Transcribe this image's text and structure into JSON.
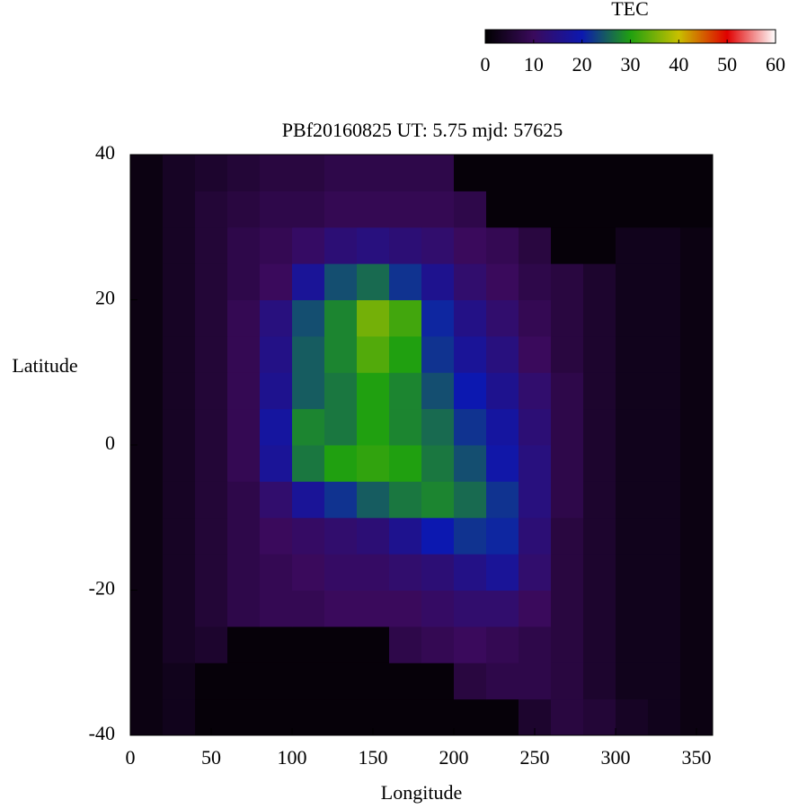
{
  "chart_data": {
    "type": "heatmap",
    "title": "PBf20160825  UT: 5.75  mjd: 57625",
    "x_label": "Longitude",
    "y_label": "Latitude",
    "colorbar_label": "TEC",
    "xlim": [
      0,
      360
    ],
    "ylim": [
      -40,
      40
    ],
    "xticks": [
      0,
      50,
      100,
      150,
      200,
      250,
      300,
      350
    ],
    "yticks": [
      -40,
      -20,
      0,
      20,
      40
    ],
    "clim": [
      0,
      60
    ],
    "cticks": [
      0,
      10,
      20,
      30,
      40,
      50,
      60
    ],
    "colormap": [
      "#000000",
      "#3a0a5c",
      "#0c18b0",
      "#20a010",
      "#c8c000",
      "#e00000",
      "#ffffff"
    ],
    "xbins": [
      0,
      20,
      40,
      60,
      80,
      100,
      120,
      140,
      160,
      180,
      200,
      220,
      240,
      260,
      280,
      300,
      320,
      340,
      360
    ],
    "ybins": [
      -40,
      -35,
      -30,
      -25,
      -20,
      -15,
      -10,
      -5,
      0,
      5,
      10,
      15,
      20,
      25,
      30,
      35,
      40
    ],
    "values": [
      [
        2,
        3,
        1,
        1,
        1,
        1,
        1,
        1,
        1,
        1,
        1,
        1,
        5,
        7,
        6,
        4,
        3,
        2
      ],
      [
        2,
        3,
        1,
        1,
        1,
        1,
        1,
        1,
        1,
        1,
        7,
        8,
        8,
        7,
        5,
        3,
        3,
        2
      ],
      [
        2,
        4,
        5,
        1,
        1,
        1,
        1,
        1,
        8,
        9,
        10,
        9,
        8,
        7,
        5,
        3,
        3,
        2
      ],
      [
        2,
        4,
        6,
        8,
        9,
        9,
        10,
        10,
        10,
        11,
        12,
        12,
        10,
        7,
        5,
        3,
        3,
        2
      ],
      [
        2,
        4,
        6,
        8,
        9,
        10,
        11,
        11,
        12,
        13,
        15,
        17,
        12,
        7,
        5,
        3,
        3,
        2
      ],
      [
        2,
        4,
        6,
        8,
        10,
        11,
        12,
        13,
        16,
        20,
        22,
        21,
        13,
        7,
        5,
        3,
        3,
        2
      ],
      [
        2,
        4,
        6,
        8,
        12,
        17,
        22,
        25,
        27,
        28,
        26,
        22,
        14,
        8,
        5,
        3,
        3,
        2
      ],
      [
        2,
        4,
        6,
        9,
        17,
        27,
        30,
        31,
        30,
        27,
        24,
        19,
        14,
        8,
        5,
        3,
        3,
        2
      ],
      [
        2,
        4,
        6,
        9,
        18,
        28,
        27,
        30,
        28,
        26,
        22,
        18,
        13,
        8,
        5,
        3,
        3,
        2
      ],
      [
        2,
        4,
        6,
        9,
        16,
        25,
        27,
        30,
        28,
        24,
        20,
        16,
        12,
        8,
        5,
        3,
        3,
        2
      ],
      [
        2,
        4,
        6,
        9,
        15,
        25,
        28,
        33,
        30,
        22,
        17,
        14,
        10,
        7,
        5,
        3,
        3,
        2
      ],
      [
        2,
        4,
        6,
        9,
        14,
        24,
        28,
        35,
        32,
        21,
        15,
        12,
        9,
        7,
        5,
        3,
        3,
        2
      ],
      [
        2,
        4,
        6,
        8,
        10,
        17,
        24,
        26,
        22,
        16,
        12,
        10,
        8,
        7,
        5,
        3,
        3,
        2
      ],
      [
        2,
        4,
        6,
        8,
        9,
        11,
        13,
        14,
        13,
        12,
        10,
        9,
        7,
        1,
        1,
        3,
        3,
        2
      ],
      [
        2,
        4,
        6,
        7,
        8,
        8,
        9,
        9,
        9,
        9,
        8,
        1,
        1,
        1,
        1,
        1,
        1,
        1
      ],
      [
        2,
        4,
        5,
        6,
        7,
        7,
        8,
        8,
        8,
        8,
        1,
        1,
        1,
        1,
        1,
        1,
        1,
        1
      ]
    ]
  }
}
